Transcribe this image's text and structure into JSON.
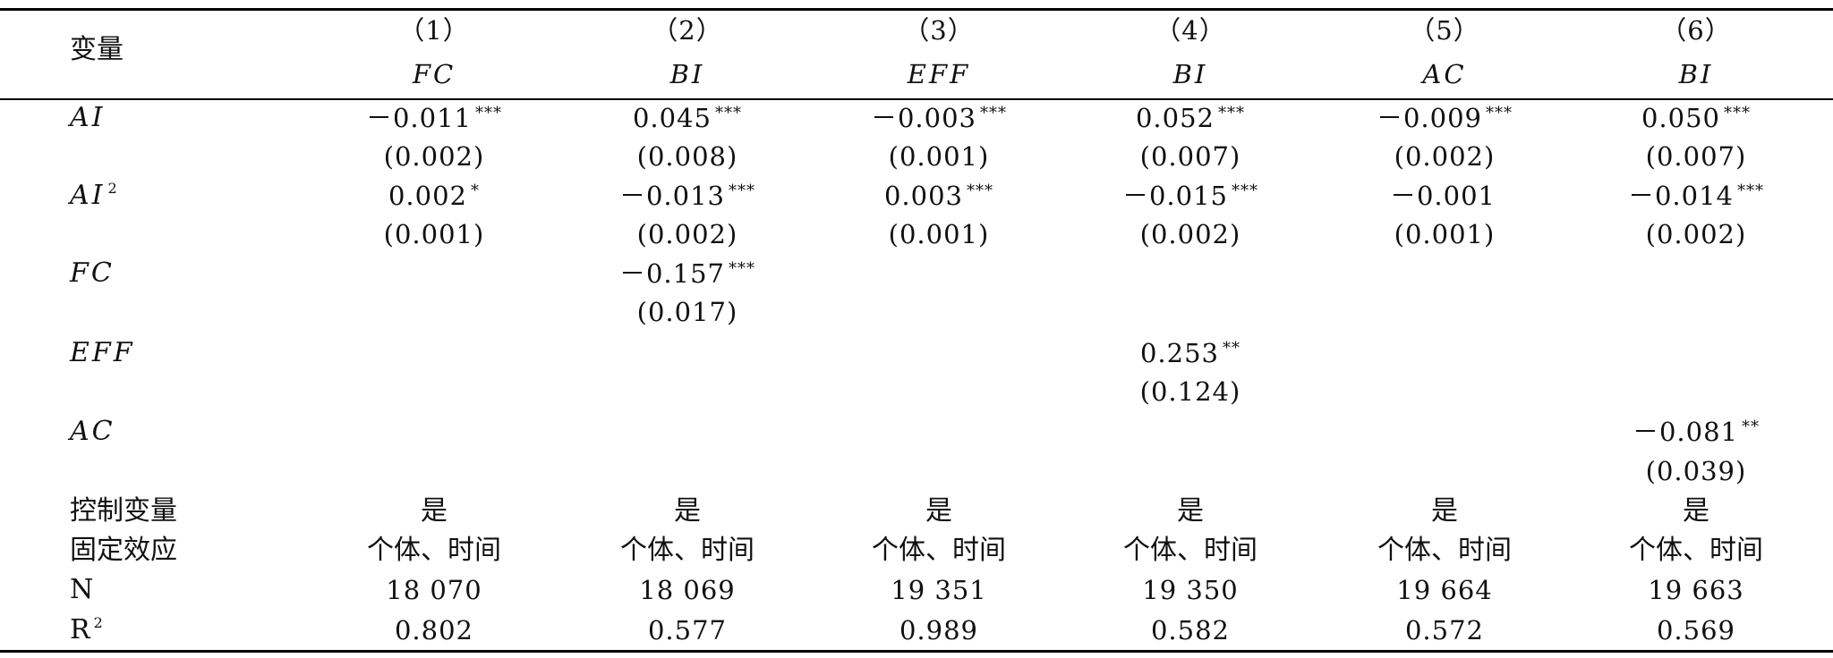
{
  "header": {
    "variable_label": "变量",
    "model_numbers": [
      "（1）",
      "（2）",
      "（3）",
      "（4）",
      "（5）",
      "（6）"
    ],
    "dependent_vars": [
      "FC",
      "BI",
      "EFF",
      "BI",
      "AC",
      "BI"
    ]
  },
  "rows": {
    "ai": {
      "label": "AI",
      "coefs": [
        "－0.011",
        "0.045",
        "－0.003",
        "0.052",
        "－0.009",
        "0.050"
      ],
      "stars": [
        "***",
        "***",
        "***",
        "***",
        "***",
        "***"
      ],
      "ses": [
        "(0.002)",
        "(0.008)",
        "(0.001)",
        "(0.007)",
        "(0.002)",
        "(0.007)"
      ]
    },
    "ai2": {
      "label": "AI",
      "label_sup": "2",
      "coefs": [
        "0.002",
        "－0.013",
        "0.003",
        "－0.015",
        "－0.001",
        "－0.014"
      ],
      "stars": [
        "*",
        "***",
        "***",
        "***",
        "",
        "***"
      ],
      "ses": [
        "(0.001)",
        "(0.002)",
        "(0.001)",
        "(0.002)",
        "(0.001)",
        "(0.002)"
      ]
    },
    "fc": {
      "label": "FC",
      "coef": "－0.157",
      "stars": "***",
      "se": "(0.017)"
    },
    "eff": {
      "label": "EFF",
      "coef": "0.253",
      "stars": "**",
      "se": "(0.124)"
    },
    "ac": {
      "label": "AC",
      "coef": "－0.081",
      "stars": "**",
      "se": "(0.039)"
    },
    "controls": {
      "label": "控制变量",
      "values": [
        "是",
        "是",
        "是",
        "是",
        "是",
        "是"
      ]
    },
    "fixed_effects": {
      "label": "固定效应",
      "values": [
        "个体、时间",
        "个体、时间",
        "个体、时间",
        "个体、时间",
        "个体、时间",
        "个体、时间"
      ]
    },
    "n": {
      "label": "N",
      "values": [
        "18 070",
        "18 069",
        "19 351",
        "19 350",
        "19 664",
        "19 663"
      ]
    },
    "r2": {
      "label": "R",
      "label_sup": "2",
      "values": [
        "0.802",
        "0.577",
        "0.989",
        "0.582",
        "0.572",
        "0.569"
      ]
    }
  }
}
